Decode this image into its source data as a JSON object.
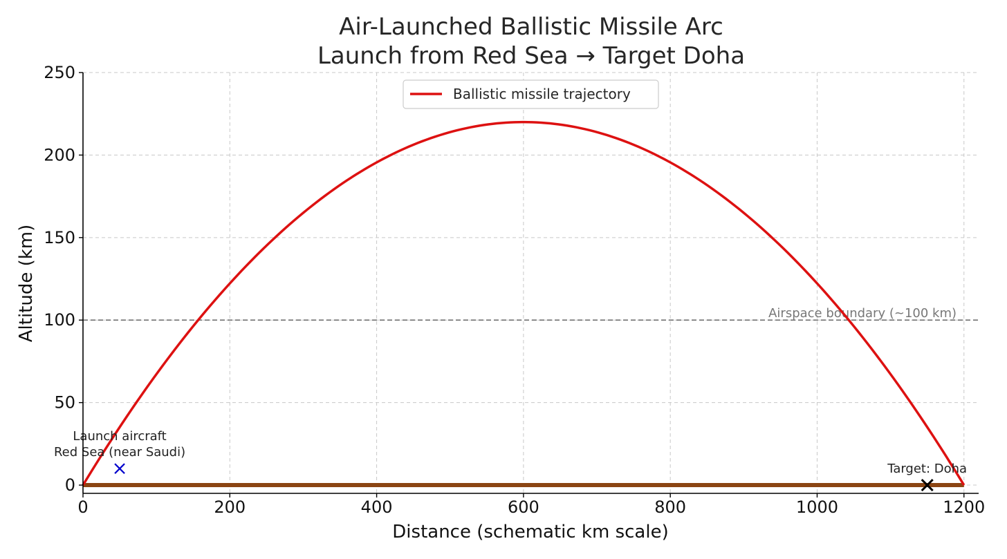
{
  "chart_data": {
    "type": "line",
    "title": [
      "Air-Launched Ballistic Missile Arc",
      "Launch from Red Sea → Target Doha"
    ],
    "xlabel": "Distance (schematic km scale)",
    "ylabel": "Altitude (km)",
    "xlim": [
      0,
      1220
    ],
    "ylim": [
      -5,
      250
    ],
    "x_ticks": [
      0,
      200,
      400,
      600,
      800,
      1000,
      1200
    ],
    "y_ticks": [
      0,
      50,
      100,
      150,
      200,
      250
    ],
    "grid": true,
    "legend_position": "top-center",
    "series": [
      {
        "name": "Ballistic missile trajectory",
        "color": "#dd1111",
        "shape": "parabola",
        "x_start": 0,
        "x_end": 1200,
        "apex_x": 600,
        "apex_y": 220
      }
    ],
    "ground": {
      "x": [
        0,
        1200
      ],
      "y": 0,
      "color": "#8b4513"
    },
    "reference_lines": [
      {
        "y": 100,
        "label": "Airspace boundary (~100 km)",
        "color": "#777777",
        "style": "dashed"
      }
    ],
    "markers": [
      {
        "x": 50,
        "y": 10,
        "marker": "x",
        "color": "#0000cc",
        "label": [
          "Launch aircraft",
          "Red Sea (near Saudi)"
        ]
      },
      {
        "x": 1150,
        "y": 0,
        "marker": "x",
        "color": "#000000",
        "label": [
          "Target: Doha"
        ]
      }
    ]
  }
}
